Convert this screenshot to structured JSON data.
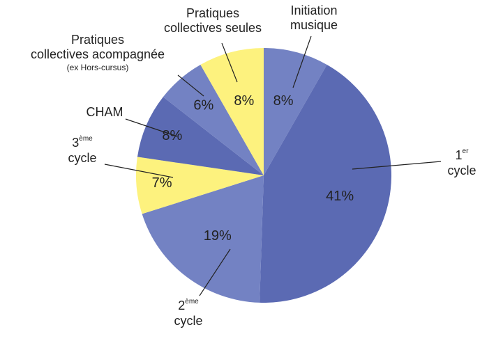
{
  "chart_data": {
    "type": "pie",
    "categories": [
      [
        "Initiation",
        "musique"
      ],
      [
        {
          "text": "1",
          "sup": "er"
        },
        "cycle"
      ],
      [
        {
          "text": "2",
          "sup": "ème"
        },
        "cycle"
      ],
      [
        {
          "text": "3",
          "sup": "ème"
        },
        "cycle"
      ],
      [
        "CHAM"
      ],
      [
        "Pratiques",
        "collectives acompagnée",
        {
          "note": "(ex Hors-cursus)"
        }
      ],
      [
        "Pratiques",
        "collectives seules"
      ]
    ],
    "values": [
      8,
      41,
      19,
      7,
      8,
      6,
      8
    ],
    "value_labels": [
      "8%",
      "41%",
      "19%",
      "7%",
      "8%",
      "6%",
      "8%"
    ],
    "colors": [
      "#7382c3",
      "#5b6ab3",
      "#7382c3",
      "#fdf27e",
      "#5b6ab3",
      "#7382c3",
      "#fdf27e"
    ]
  }
}
